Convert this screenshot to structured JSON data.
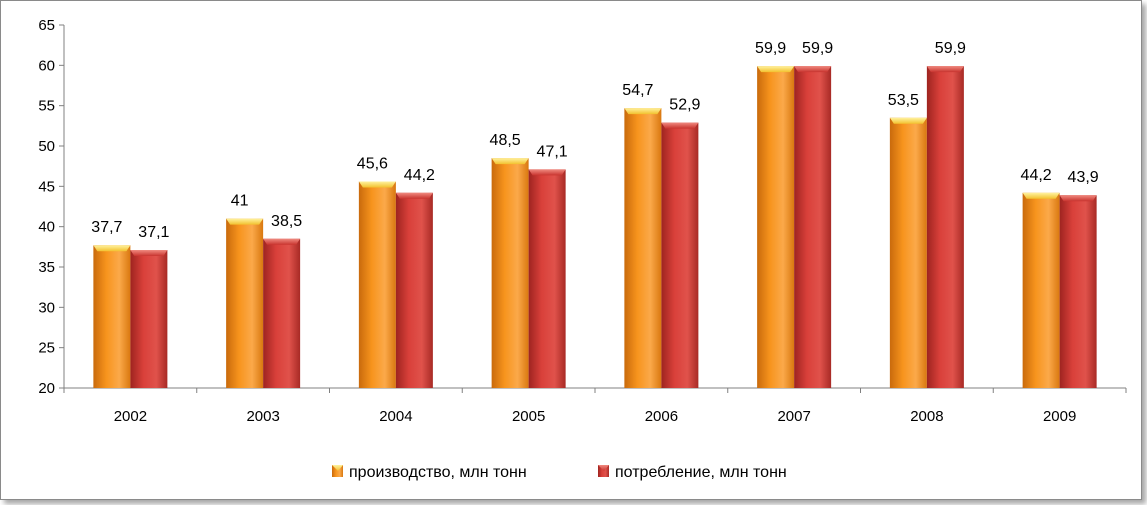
{
  "chart_data": {
    "type": "bar",
    "categories": [
      "2002",
      "2003",
      "2004",
      "2005",
      "2006",
      "2007",
      "2008",
      "2009"
    ],
    "series": [
      {
        "name": "производство, млн тонн",
        "color": "#f7941d",
        "values": [
          37.7,
          41,
          45.6,
          48.5,
          54.7,
          59.9,
          53.5,
          44.2
        ],
        "labels": [
          "37,7",
          "41",
          "45,6",
          "48,5",
          "54,7",
          "59,9",
          "53,5",
          "44,2"
        ]
      },
      {
        "name": "потребление, млн тонн",
        "color": "#d9403a",
        "values": [
          37.1,
          38.5,
          44.2,
          47.1,
          52.9,
          59.9,
          59.9,
          43.9
        ],
        "labels": [
          "37,1",
          "38,5",
          "44,2",
          "47,1",
          "52,9",
          "59,9",
          "59,9",
          "43,9"
        ]
      }
    ],
    "ylim": [
      20,
      65
    ],
    "yticks": [
      "20",
      "25",
      "30",
      "35",
      "40",
      "45",
      "50",
      "55",
      "60",
      "65"
    ],
    "legend_position": "bottom",
    "grid": false
  }
}
